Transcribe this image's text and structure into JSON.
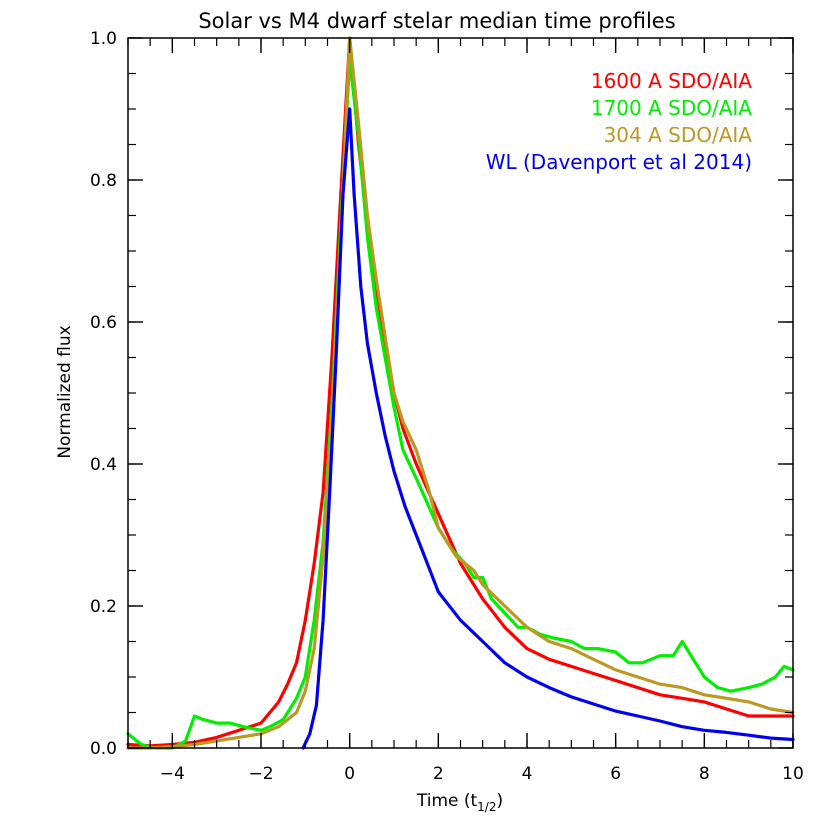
{
  "chart_data": {
    "type": "line",
    "title": "Solar vs  M4 dwarf stelar median time profiles",
    "xlabel_main": "Time (t",
    "xlabel_sub": "1/2",
    "xlabel_close": ")",
    "ylabel": "Normalized flux",
    "xlim": [
      -5,
      10
    ],
    "ylim": [
      0,
      1.0
    ],
    "x_major_ticks": [
      -4,
      -2,
      0,
      2,
      4,
      6,
      8,
      10
    ],
    "x_minor_step": 0.5,
    "y_major_ticks": [
      "0.0",
      "0.2",
      "0.4",
      "0.6",
      "0.8",
      "1.0"
    ],
    "y_minor_step": 0.05,
    "grid": false,
    "legend_position": "top-right",
    "series": [
      {
        "name": "1600 A SDO/AIA",
        "color": "#ff0000",
        "points": [
          [
            -5.0,
            0.005
          ],
          [
            -4.5,
            0.003
          ],
          [
            -4.0,
            0.005
          ],
          [
            -3.5,
            0.008
          ],
          [
            -3.0,
            0.015
          ],
          [
            -2.5,
            0.025
          ],
          [
            -2.0,
            0.035
          ],
          [
            -1.8,
            0.05
          ],
          [
            -1.6,
            0.065
          ],
          [
            -1.4,
            0.09
          ],
          [
            -1.2,
            0.12
          ],
          [
            -1.0,
            0.18
          ],
          [
            -0.8,
            0.26
          ],
          [
            -0.6,
            0.36
          ],
          [
            -0.4,
            0.55
          ],
          [
            -0.2,
            0.78
          ],
          [
            0.0,
            1.0
          ],
          [
            0.2,
            0.85
          ],
          [
            0.4,
            0.74
          ],
          [
            0.6,
            0.65
          ],
          [
            0.8,
            0.57
          ],
          [
            1.0,
            0.5
          ],
          [
            1.2,
            0.45
          ],
          [
            1.5,
            0.4
          ],
          [
            2.0,
            0.33
          ],
          [
            2.5,
            0.26
          ],
          [
            3.0,
            0.21
          ],
          [
            3.5,
            0.17
          ],
          [
            4.0,
            0.14
          ],
          [
            4.5,
            0.125
          ],
          [
            5.0,
            0.115
          ],
          [
            5.5,
            0.105
          ],
          [
            6.0,
            0.095
          ],
          [
            6.5,
            0.085
          ],
          [
            7.0,
            0.075
          ],
          [
            7.5,
            0.07
          ],
          [
            8.0,
            0.065
          ],
          [
            8.5,
            0.055
          ],
          [
            9.0,
            0.045
          ],
          [
            9.5,
            0.045
          ],
          [
            10.0,
            0.045
          ]
        ]
      },
      {
        "name": "1700 A SDO/AIA",
        "color": "#00ee00",
        "points": [
          [
            -5.0,
            0.02
          ],
          [
            -4.7,
            0.005
          ],
          [
            -4.4,
            0.0
          ],
          [
            -4.0,
            0.0
          ],
          [
            -3.7,
            0.01
          ],
          [
            -3.5,
            0.045
          ],
          [
            -3.3,
            0.04
          ],
          [
            -3.0,
            0.035
          ],
          [
            -2.7,
            0.035
          ],
          [
            -2.4,
            0.03
          ],
          [
            -2.0,
            0.025
          ],
          [
            -1.8,
            0.03
          ],
          [
            -1.5,
            0.04
          ],
          [
            -1.2,
            0.07
          ],
          [
            -1.0,
            0.1
          ],
          [
            -0.8,
            0.18
          ],
          [
            -0.6,
            0.29
          ],
          [
            -0.4,
            0.48
          ],
          [
            -0.2,
            0.74
          ],
          [
            0.0,
            0.97
          ],
          [
            0.2,
            0.86
          ],
          [
            0.4,
            0.72
          ],
          [
            0.6,
            0.62
          ],
          [
            0.8,
            0.55
          ],
          [
            1.0,
            0.48
          ],
          [
            1.2,
            0.42
          ],
          [
            1.5,
            0.38
          ],
          [
            2.0,
            0.31
          ],
          [
            2.3,
            0.28
          ],
          [
            2.6,
            0.26
          ],
          [
            2.8,
            0.24
          ],
          [
            3.0,
            0.24
          ],
          [
            3.2,
            0.21
          ],
          [
            3.5,
            0.19
          ],
          [
            3.8,
            0.17
          ],
          [
            4.0,
            0.17
          ],
          [
            4.3,
            0.16
          ],
          [
            4.6,
            0.155
          ],
          [
            5.0,
            0.15
          ],
          [
            5.3,
            0.14
          ],
          [
            5.6,
            0.14
          ],
          [
            6.0,
            0.135
          ],
          [
            6.3,
            0.12
          ],
          [
            6.6,
            0.12
          ],
          [
            7.0,
            0.13
          ],
          [
            7.3,
            0.13
          ],
          [
            7.5,
            0.15
          ],
          [
            7.8,
            0.12
          ],
          [
            8.0,
            0.1
          ],
          [
            8.3,
            0.085
          ],
          [
            8.6,
            0.08
          ],
          [
            9.0,
            0.085
          ],
          [
            9.3,
            0.09
          ],
          [
            9.6,
            0.1
          ],
          [
            9.8,
            0.115
          ],
          [
            10.0,
            0.11
          ]
        ]
      },
      {
        "name": "304 A SDO/AIA",
        "color": "#bb9922",
        "points": [
          [
            -5.0,
            0.0
          ],
          [
            -4.5,
            0.0
          ],
          [
            -4.0,
            0.002
          ],
          [
            -3.5,
            0.005
          ],
          [
            -3.0,
            0.01
          ],
          [
            -2.5,
            0.015
          ],
          [
            -2.0,
            0.02
          ],
          [
            -1.6,
            0.03
          ],
          [
            -1.2,
            0.05
          ],
          [
            -1.0,
            0.08
          ],
          [
            -0.8,
            0.14
          ],
          [
            -0.6,
            0.27
          ],
          [
            -0.4,
            0.46
          ],
          [
            -0.2,
            0.72
          ],
          [
            0.0,
            1.0
          ],
          [
            0.2,
            0.88
          ],
          [
            0.4,
            0.75
          ],
          [
            0.6,
            0.66
          ],
          [
            0.8,
            0.58
          ],
          [
            1.0,
            0.5
          ],
          [
            1.2,
            0.46
          ],
          [
            1.5,
            0.42
          ],
          [
            1.8,
            0.36
          ],
          [
            2.0,
            0.31
          ],
          [
            2.4,
            0.27
          ],
          [
            2.8,
            0.25
          ],
          [
            3.0,
            0.23
          ],
          [
            3.5,
            0.2
          ],
          [
            4.0,
            0.17
          ],
          [
            4.5,
            0.15
          ],
          [
            5.0,
            0.14
          ],
          [
            5.5,
            0.125
          ],
          [
            6.0,
            0.11
          ],
          [
            6.5,
            0.1
          ],
          [
            7.0,
            0.09
          ],
          [
            7.5,
            0.085
          ],
          [
            8.0,
            0.075
          ],
          [
            8.5,
            0.07
          ],
          [
            9.0,
            0.065
          ],
          [
            9.5,
            0.055
          ],
          [
            10.0,
            0.05
          ]
        ]
      },
      {
        "name": "WL (Davenport et al 2014)",
        "color": "#0000ee",
        "points": [
          [
            -1.05,
            0.0
          ],
          [
            -0.9,
            0.02
          ],
          [
            -0.75,
            0.06
          ],
          [
            -0.6,
            0.18
          ],
          [
            -0.45,
            0.36
          ],
          [
            -0.3,
            0.56
          ],
          [
            -0.15,
            0.78
          ],
          [
            0.0,
            0.9
          ],
          [
            0.1,
            0.78
          ],
          [
            0.25,
            0.65
          ],
          [
            0.4,
            0.57
          ],
          [
            0.6,
            0.5
          ],
          [
            0.8,
            0.44
          ],
          [
            1.0,
            0.39
          ],
          [
            1.25,
            0.34
          ],
          [
            1.5,
            0.3
          ],
          [
            1.75,
            0.26
          ],
          [
            2.0,
            0.22
          ],
          [
            2.5,
            0.18
          ],
          [
            3.0,
            0.15
          ],
          [
            3.5,
            0.12
          ],
          [
            4.0,
            0.1
          ],
          [
            4.5,
            0.085
          ],
          [
            5.0,
            0.072
          ],
          [
            5.5,
            0.062
          ],
          [
            6.0,
            0.052
          ],
          [
            6.5,
            0.045
          ],
          [
            7.0,
            0.038
          ],
          [
            7.5,
            0.03
          ],
          [
            8.0,
            0.025
          ],
          [
            8.5,
            0.022
          ],
          [
            9.0,
            0.018
          ],
          [
            9.5,
            0.014
          ],
          [
            10.0,
            0.012
          ]
        ]
      }
    ]
  }
}
